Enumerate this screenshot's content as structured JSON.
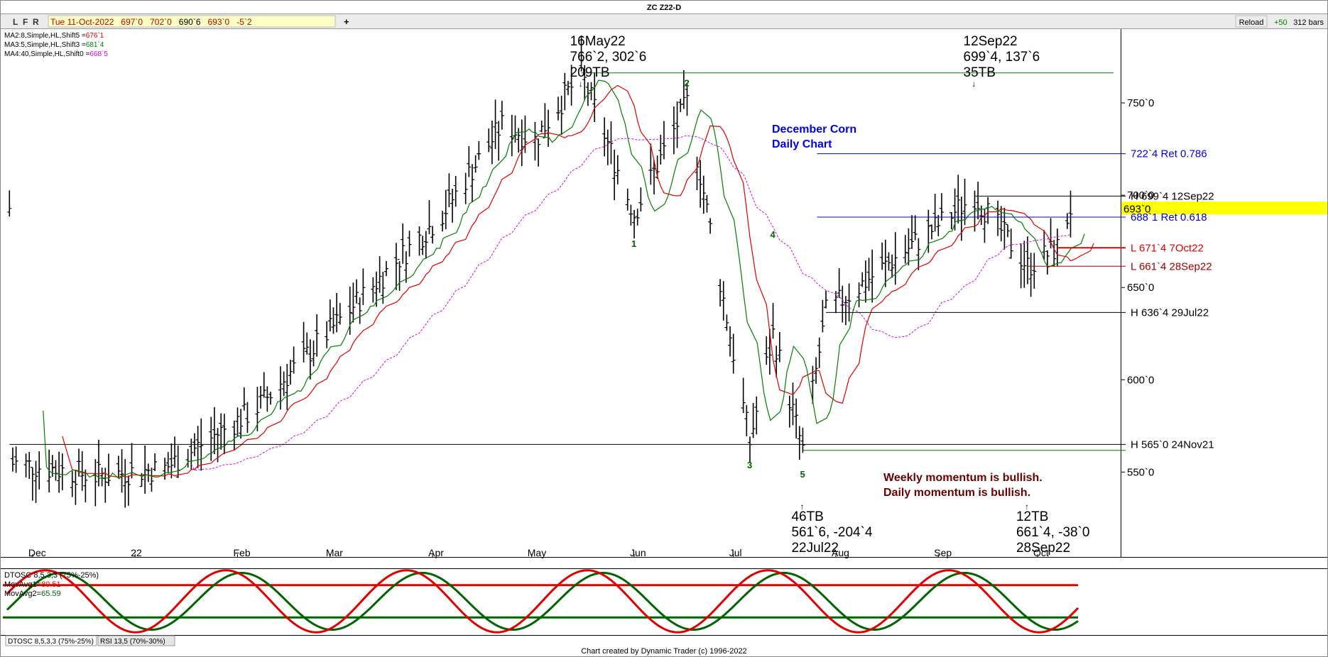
{
  "window": {
    "title": "ZC Z22-D",
    "toolbar_buttons": [
      "L",
      "F",
      "R"
    ],
    "quote": {
      "date": "Tue 11-Oct-2022",
      "open": "697`0",
      "high": "702`0",
      "low": "690`6",
      "close": "693`0",
      "change": "-5`2"
    },
    "add_label": "+",
    "reload_label": "Reload",
    "reload_count": "+50",
    "bars_count": "312 bars",
    "footer": "Chart created by Dynamic Trader  (c) 1996-2022"
  },
  "indicators": [
    {
      "label": "MA2:8,Simple,HL,Shift5 =",
      "value": "676`1",
      "color": "#e00000"
    },
    {
      "label": "MA3:5,Simple,HL,Shift3 =",
      "value": "681`4",
      "color": "#008000"
    },
    {
      "label": "MA4:40,Simple,HL,Shift0 =",
      "value": "668`5",
      "color": "#e000e0"
    }
  ],
  "chart_data": {
    "type": "bar",
    "title": "December Corn",
    "subtitle": "Daily Chart",
    "y_ticks": [
      "750`0",
      "700`0",
      "650`0",
      "600`0",
      "550`0"
    ],
    "y_tick_values": [
      750,
      700,
      650,
      600,
      550
    ],
    "ylim": [
      504,
      790
    ],
    "last_price": "693`0",
    "last_price_value": 693,
    "x_ticks": [
      "Dec",
      "22",
      "Feb",
      "Mar",
      "Apr",
      "May",
      "Jun",
      "Jul",
      "Aug",
      "Sep",
      "Oct"
    ],
    "x_tick_dates": [
      "2021-12-01",
      "2022-01-01",
      "2022-02-01",
      "2022-03-01",
      "2022-04-01",
      "2022-05-01",
      "2022-06-01",
      "2022-07-01",
      "2022-08-01",
      "2022-09-01",
      "2022-10-01"
    ],
    "xlim": [
      "2021-11-22",
      "2022-10-24"
    ],
    "key_prices": [
      {
        "date": "2021-11-24",
        "price": 565,
        "kind": "high"
      },
      {
        "date": "2022-05-16",
        "price": 766.25,
        "kind": "high"
      },
      {
        "date": "2022-06-01",
        "price": 690,
        "kind": "low"
      },
      {
        "date": "2022-06-17",
        "price": 750,
        "kind": "high"
      },
      {
        "date": "2022-07-06",
        "price": 566,
        "kind": "low"
      },
      {
        "date": "2022-07-13",
        "price": 625,
        "kind": "high"
      },
      {
        "date": "2022-07-22",
        "price": 561.75,
        "kind": "low"
      },
      {
        "date": "2022-07-29",
        "price": 636.5,
        "kind": "high"
      },
      {
        "date": "2022-09-12",
        "price": 699.5,
        "kind": "high"
      },
      {
        "date": "2022-09-28",
        "price": 661.5,
        "kind": "low"
      },
      {
        "date": "2022-10-07",
        "price": 671.5,
        "kind": "low"
      },
      {
        "date": "2022-10-11",
        "price": 693,
        "kind": "close"
      }
    ],
    "levels": [
      {
        "label": "H 699`4 12Sep22",
        "price": 699.5,
        "from": "2022-09-12",
        "color": "#000000"
      },
      {
        "label": "L 671`4 7Oct22",
        "price": 671.5,
        "from": "2022-10-07",
        "color": "#e00000"
      },
      {
        "label": "L 661`4 28Sep22",
        "price": 661.5,
        "from": "2022-09-28",
        "color": "#a00000"
      },
      {
        "label": "H 636`4 29Jul22",
        "price": 636.5,
        "from": "2022-07-29",
        "color": "#000000"
      },
      {
        "label": "H 565`0 24Nov21",
        "price": 565,
        "from": "2021-11-24",
        "color": "#000000"
      }
    ],
    "retracements": [
      {
        "label": "722`4 Ret 0.786",
        "price": 722.5,
        "from": "2022-07-22"
      },
      {
        "label": "688`1 Ret 0.618",
        "price": 688.125,
        "from": "2022-07-22"
      }
    ],
    "top_line": {
      "price": 766.25,
      "from": "2022-05-16"
    },
    "bottom_line": {
      "price": 561.75,
      "from": "2022-07-22"
    },
    "annotations_top": [
      {
        "lines": [
          "16May22",
          "766`2, 302`6",
          "209TB"
        ],
        "date": "2022-05-16",
        "price": 766.25
      },
      {
        "lines": [
          "12Sep22",
          "699`4, 137`6",
          "35TB"
        ],
        "date": "2022-09-12",
        "price": 766.25
      }
    ],
    "annotations_bottom": [
      {
        "lines": [
          "46TB",
          "561`6, -204`4",
          "22Jul22"
        ],
        "date": "2022-07-22",
        "price": 561.75
      },
      {
        "lines": [
          "12TB",
          "661`4, -38`0",
          "28Sep22"
        ],
        "date": "2022-09-28",
        "price": 561.75
      }
    ],
    "wave_labels": [
      {
        "label": "1",
        "date": "2022-06-01",
        "price": 674
      },
      {
        "label": "2",
        "date": "2022-06-17",
        "price": 761
      },
      {
        "label": "3",
        "date": "2022-07-06",
        "price": 554
      },
      {
        "label": "4",
        "date": "2022-07-13",
        "price": 679
      },
      {
        "label": "5",
        "date": "2022-07-22",
        "price": 549
      }
    ],
    "momentum_notes": [
      "Weekly momentum is bullish.",
      "Daily momentum is bullish."
    ],
    "oscillator": {
      "title": "DTOSC 8,5,3,3 (75%-25%)",
      "series": [
        {
          "name": "MovAvg1",
          "value": "80.51",
          "color": "#e00000"
        },
        {
          "name": "MovAvg2",
          "value": "65.59",
          "color": "#006400"
        }
      ],
      "bands": [
        75,
        25
      ],
      "ylim": [
        0,
        100
      ]
    }
  },
  "tabs": [
    "DTOSC 8,5,3,3 (75%-25%)",
    "RSI 13,5 (70%-30%)"
  ],
  "colors": {
    "accent_blue": "#0000e0",
    "note_red": "#6b0000",
    "price_tag": "#ffff00"
  }
}
